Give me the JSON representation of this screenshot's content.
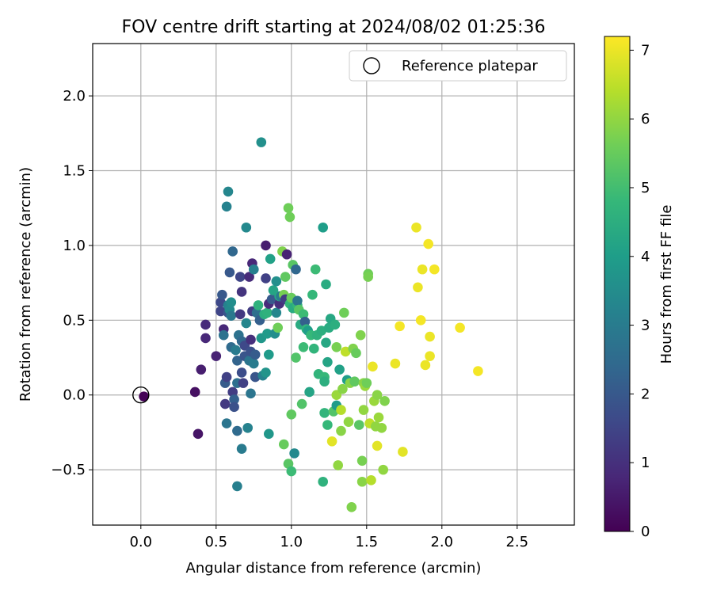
{
  "chart_data": {
    "type": "scatter",
    "title": "FOV centre drift starting at 2024/08/02 01:25:36",
    "xlabel": "Angular distance from reference (arcmin)",
    "ylabel": "Rotation from reference (arcmin)",
    "xlim": [
      -0.32,
      2.88
    ],
    "ylim": [
      -0.87,
      2.35
    ],
    "xticks": [
      0.0,
      0.5,
      1.0,
      1.5,
      2.0,
      2.5
    ],
    "xtick_labels": [
      "0.0",
      "0.5",
      "1.0",
      "1.5",
      "2.0",
      "2.5"
    ],
    "yticks": [
      -0.5,
      0.0,
      0.5,
      1.0,
      1.5,
      2.0
    ],
    "ytick_labels": [
      "−0.5",
      "0.0",
      "0.5",
      "1.0",
      "1.5",
      "2.0"
    ],
    "grid": true,
    "legend": {
      "position": "top-right",
      "label": "Reference platepar",
      "marker": "open-circle"
    },
    "reference_point": {
      "x": 0.0,
      "y": 0.0
    },
    "colorbar": {
      "label": "Hours from first FF file",
      "range": [
        0,
        7.2
      ],
      "ticks": [
        0,
        1,
        2,
        3,
        4,
        5,
        6,
        7
      ],
      "tick_labels": [
        "0",
        "1",
        "2",
        "3",
        "4",
        "5",
        "6",
        "7"
      ],
      "colormap": "viridis",
      "stops": [
        "#440154",
        "#482878",
        "#3e4989",
        "#31688e",
        "#26828e",
        "#1f9e89",
        "#35b779",
        "#6ece58",
        "#b5de2b",
        "#fde725"
      ]
    },
    "points": [
      {
        "x": 0.02,
        "y": -0.01,
        "t": 0.05
      },
      {
        "x": 0.36,
        "y": 0.02,
        "t": 0.3
      },
      {
        "x": 0.38,
        "y": -0.26,
        "t": 0.4
      },
      {
        "x": 0.4,
        "y": 0.17,
        "t": 0.6
      },
      {
        "x": 0.43,
        "y": 0.38,
        "t": 0.8
      },
      {
        "x": 0.43,
        "y": 0.47,
        "t": 0.9
      },
      {
        "x": 0.5,
        "y": 0.26,
        "t": 0.7
      },
      {
        "x": 0.53,
        "y": 0.56,
        "t": 1.5
      },
      {
        "x": 0.53,
        "y": 0.62,
        "t": 1.6
      },
      {
        "x": 0.54,
        "y": 0.67,
        "t": 2.0
      },
      {
        "x": 0.55,
        "y": 0.44,
        "t": 0.8
      },
      {
        "x": 0.55,
        "y": 0.4,
        "t": 2.7
      },
      {
        "x": 0.56,
        "y": -0.06,
        "t": 1.2
      },
      {
        "x": 0.56,
        "y": 0.08,
        "t": 2.1
      },
      {
        "x": 0.57,
        "y": -0.19,
        "t": 2.8
      },
      {
        "x": 0.57,
        "y": 0.12,
        "t": 1.4
      },
      {
        "x": 0.58,
        "y": 0.55,
        "t": 1.9
      },
      {
        "x": 0.58,
        "y": 0.6,
        "t": 3.2
      },
      {
        "x": 0.59,
        "y": 0.57,
        "t": 3.4
      },
      {
        "x": 0.6,
        "y": 0.53,
        "t": 2.9
      },
      {
        "x": 0.6,
        "y": 0.62,
        "t": 3.5
      },
      {
        "x": 0.57,
        "y": 1.26,
        "t": 3.2
      },
      {
        "x": 0.58,
        "y": 1.36,
        "t": 3.3
      },
      {
        "x": 0.59,
        "y": 0.82,
        "t": 2.0
      },
      {
        "x": 0.6,
        "y": 0.32,
        "t": 2.5
      },
      {
        "x": 0.61,
        "y": 0.96,
        "t": 2.4
      },
      {
        "x": 0.61,
        "y": 0.02,
        "t": 1.3
      },
      {
        "x": 0.62,
        "y": -0.03,
        "t": 2.2
      },
      {
        "x": 0.62,
        "y": -0.08,
        "t": 1.8
      },
      {
        "x": 0.63,
        "y": 0.3,
        "t": 3.0
      },
      {
        "x": 0.64,
        "y": 0.08,
        "t": 2.6
      },
      {
        "x": 0.64,
        "y": 0.23,
        "t": 2.3
      },
      {
        "x": 0.64,
        "y": -0.24,
        "t": 2.5
      },
      {
        "x": 0.64,
        "y": -0.61,
        "t": 3.1
      },
      {
        "x": 0.65,
        "y": 0.4,
        "t": 2.7
      },
      {
        "x": 0.66,
        "y": 0.79,
        "t": 1.5
      },
      {
        "x": 0.66,
        "y": 0.54,
        "t": 1.2
      },
      {
        "x": 0.67,
        "y": 0.69,
        "t": 1.1
      },
      {
        "x": 0.67,
        "y": 0.36,
        "t": 2.4
      },
      {
        "x": 0.67,
        "y": 0.15,
        "t": 1.7
      },
      {
        "x": 0.67,
        "y": -0.36,
        "t": 3.0
      },
      {
        "x": 0.68,
        "y": 0.08,
        "t": 1.4
      },
      {
        "x": 0.69,
        "y": 0.26,
        "t": 1.9
      },
      {
        "x": 0.69,
        "y": 0.33,
        "t": 1.6
      },
      {
        "x": 0.7,
        "y": 1.12,
        "t": 3.4
      },
      {
        "x": 0.7,
        "y": 0.48,
        "t": 3.3
      },
      {
        "x": 0.71,
        "y": -0.22,
        "t": 3.2
      },
      {
        "x": 0.72,
        "y": 0.79,
        "t": 0.9
      },
      {
        "x": 0.72,
        "y": 0.23,
        "t": 2.8
      },
      {
        "x": 0.73,
        "y": 0.29,
        "t": 1.8
      },
      {
        "x": 0.73,
        "y": 0.37,
        "t": 1.0
      },
      {
        "x": 0.73,
        "y": 0.01,
        "t": 2.8
      },
      {
        "x": 0.74,
        "y": 0.88,
        "t": 0.8
      },
      {
        "x": 0.74,
        "y": 0.56,
        "t": 1.3
      },
      {
        "x": 0.75,
        "y": 0.84,
        "t": 3.1
      },
      {
        "x": 0.75,
        "y": 0.21,
        "t": 3.0
      },
      {
        "x": 0.76,
        "y": 0.27,
        "t": 2.1
      },
      {
        "x": 0.76,
        "y": 0.12,
        "t": 1.9
      },
      {
        "x": 0.77,
        "y": 0.55,
        "t": 2.6
      },
      {
        "x": 0.78,
        "y": 0.6,
        "t": 4.6
      },
      {
        "x": 0.79,
        "y": 0.5,
        "t": 2.2
      },
      {
        "x": 0.8,
        "y": 1.69,
        "t": 3.6
      },
      {
        "x": 0.8,
        "y": 0.38,
        "t": 3.8
      },
      {
        "x": 0.81,
        "y": 0.13,
        "t": 3.2
      },
      {
        "x": 0.82,
        "y": 0.54,
        "t": 4.5
      },
      {
        "x": 0.83,
        "y": 0.78,
        "t": 1.4
      },
      {
        "x": 0.83,
        "y": 1.0,
        "t": 0.6
      },
      {
        "x": 0.83,
        "y": 0.15,
        "t": 3.7
      },
      {
        "x": 0.84,
        "y": 0.41,
        "t": 3.9
      },
      {
        "x": 0.84,
        "y": 0.55,
        "t": 4.6
      },
      {
        "x": 0.85,
        "y": 0.61,
        "t": 0.9
      },
      {
        "x": 0.85,
        "y": -0.26,
        "t": 3.8
      },
      {
        "x": 0.85,
        "y": 0.27,
        "t": 3.9
      },
      {
        "x": 0.86,
        "y": 0.91,
        "t": 4.1
      },
      {
        "x": 0.87,
        "y": 0.64,
        "t": 2.0
      },
      {
        "x": 0.88,
        "y": 0.7,
        "t": 4.2
      },
      {
        "x": 0.89,
        "y": 0.41,
        "t": 3.5
      },
      {
        "x": 0.9,
        "y": 0.76,
        "t": 3.6
      },
      {
        "x": 0.9,
        "y": 0.55,
        "t": 3.3
      },
      {
        "x": 0.91,
        "y": 0.45,
        "t": 5.6
      },
      {
        "x": 0.92,
        "y": 0.61,
        "t": 1.0
      },
      {
        "x": 0.92,
        "y": 0.66,
        "t": 4.3
      },
      {
        "x": 0.93,
        "y": 0.66,
        "t": 3.0
      },
      {
        "x": 0.94,
        "y": 0.96,
        "t": 5.8
      },
      {
        "x": 0.95,
        "y": 0.67,
        "t": 5.7
      },
      {
        "x": 0.95,
        "y": -0.33,
        "t": 5.5
      },
      {
        "x": 0.96,
        "y": 0.79,
        "t": 5.4
      },
      {
        "x": 0.96,
        "y": 0.64,
        "t": 1.3
      },
      {
        "x": 0.97,
        "y": 0.94,
        "t": 0.7
      },
      {
        "x": 0.98,
        "y": 1.25,
        "t": 5.6
      },
      {
        "x": 0.98,
        "y": -0.46,
        "t": 5.3
      },
      {
        "x": 0.99,
        "y": 1.19,
        "t": 5.6
      },
      {
        "x": 0.99,
        "y": 0.61,
        "t": 4.8
      },
      {
        "x": 1.0,
        "y": 0.65,
        "t": 5.5
      },
      {
        "x": 1.0,
        "y": -0.51,
        "t": 4.9
      },
      {
        "x": 1.0,
        "y": -0.13,
        "t": 5.4
      },
      {
        "x": 1.01,
        "y": 0.87,
        "t": 5.3
      },
      {
        "x": 1.01,
        "y": 0.58,
        "t": 4.4
      },
      {
        "x": 1.02,
        "y": -0.39,
        "t": 3.4
      },
      {
        "x": 1.03,
        "y": 0.84,
        "t": 2.4
      },
      {
        "x": 1.03,
        "y": 0.25,
        "t": 5.2
      },
      {
        "x": 1.04,
        "y": 0.6,
        "t": 4.7
      },
      {
        "x": 1.04,
        "y": 0.63,
        "t": 2.8
      },
      {
        "x": 1.05,
        "y": 0.57,
        "t": 5.3
      },
      {
        "x": 1.06,
        "y": 0.47,
        "t": 4.4
      },
      {
        "x": 1.07,
        "y": -0.06,
        "t": 5.2
      },
      {
        "x": 1.08,
        "y": 0.54,
        "t": 4.9
      },
      {
        "x": 1.08,
        "y": 0.32,
        "t": 4.9
      },
      {
        "x": 1.09,
        "y": 0.49,
        "t": 2.2
      },
      {
        "x": 1.1,
        "y": 0.44,
        "t": 4.7
      },
      {
        "x": 1.11,
        "y": 0.43,
        "t": 4.0
      },
      {
        "x": 1.12,
        "y": 0.02,
        "t": 4.2
      },
      {
        "x": 1.13,
        "y": 0.4,
        "t": 4.8
      },
      {
        "x": 1.14,
        "y": 0.67,
        "t": 4.8
      },
      {
        "x": 1.15,
        "y": 0.31,
        "t": 4.7
      },
      {
        "x": 1.16,
        "y": 0.84,
        "t": 4.9
      },
      {
        "x": 1.17,
        "y": 0.4,
        "t": 4.6
      },
      {
        "x": 1.18,
        "y": 0.14,
        "t": 4.7
      },
      {
        "x": 1.2,
        "y": 0.43,
        "t": 4.5
      },
      {
        "x": 1.21,
        "y": 1.12,
        "t": 4.0
      },
      {
        "x": 1.21,
        "y": -0.58,
        "t": 4.6
      },
      {
        "x": 1.22,
        "y": 0.12,
        "t": 4.8
      },
      {
        "x": 1.22,
        "y": -0.12,
        "t": 4.7
      },
      {
        "x": 1.22,
        "y": 0.09,
        "t": 4.5
      },
      {
        "x": 1.23,
        "y": 0.35,
        "t": 4.3
      },
      {
        "x": 1.23,
        "y": 0.74,
        "t": 4.4
      },
      {
        "x": 1.24,
        "y": 0.22,
        "t": 4.2
      },
      {
        "x": 1.24,
        "y": -0.2,
        "t": 4.8
      },
      {
        "x": 1.25,
        "y": 0.45,
        "t": 4.4
      },
      {
        "x": 1.26,
        "y": 0.51,
        "t": 4.3
      },
      {
        "x": 1.27,
        "y": -0.31,
        "t": 6.9
      },
      {
        "x": 1.28,
        "y": -0.11,
        "t": 5.2
      },
      {
        "x": 1.29,
        "y": 0.47,
        "t": 4.5
      },
      {
        "x": 1.3,
        "y": -0.07,
        "t": 3.9
      },
      {
        "x": 1.3,
        "y": 0.32,
        "t": 5.7
      },
      {
        "x": 1.3,
        "y": 0.0,
        "t": 6.1
      },
      {
        "x": 1.31,
        "y": -0.47,
        "t": 6.0
      },
      {
        "x": 1.32,
        "y": 0.17,
        "t": 4.1
      },
      {
        "x": 1.33,
        "y": -0.24,
        "t": 5.9
      },
      {
        "x": 1.33,
        "y": -0.1,
        "t": 6.4
      },
      {
        "x": 1.34,
        "y": 0.04,
        "t": 5.9
      },
      {
        "x": 1.35,
        "y": 0.55,
        "t": 5.6
      },
      {
        "x": 1.36,
        "y": 0.29,
        "t": 6.5
      },
      {
        "x": 1.37,
        "y": 0.1,
        "t": 4.0
      },
      {
        "x": 1.38,
        "y": -0.18,
        "t": 6.0
      },
      {
        "x": 1.39,
        "y": 0.08,
        "t": 5.9
      },
      {
        "x": 1.4,
        "y": -0.75,
        "t": 5.8
      },
      {
        "x": 1.41,
        "y": 0.31,
        "t": 5.8
      },
      {
        "x": 1.42,
        "y": 0.09,
        "t": 5.4
      },
      {
        "x": 1.43,
        "y": 0.28,
        "t": 5.5
      },
      {
        "x": 1.45,
        "y": -0.2,
        "t": 5.3
      },
      {
        "x": 1.46,
        "y": 0.4,
        "t": 5.8
      },
      {
        "x": 1.47,
        "y": -0.44,
        "t": 5.7
      },
      {
        "x": 1.47,
        "y": -0.58,
        "t": 5.9
      },
      {
        "x": 1.48,
        "y": 0.08,
        "t": 5.9
      },
      {
        "x": 1.48,
        "y": -0.1,
        "t": 6.0
      },
      {
        "x": 1.49,
        "y": 0.06,
        "t": 6.1
      },
      {
        "x": 1.5,
        "y": 0.08,
        "t": 5.6
      },
      {
        "x": 1.51,
        "y": 0.81,
        "t": 5.6
      },
      {
        "x": 1.51,
        "y": 0.79,
        "t": 5.7
      },
      {
        "x": 1.52,
        "y": -0.19,
        "t": 6.5
      },
      {
        "x": 1.53,
        "y": -0.57,
        "t": 6.4
      },
      {
        "x": 1.54,
        "y": 0.19,
        "t": 7.0
      },
      {
        "x": 1.55,
        "y": -0.04,
        "t": 6.1
      },
      {
        "x": 1.56,
        "y": -0.21,
        "t": 6.0
      },
      {
        "x": 1.57,
        "y": -0.34,
        "t": 6.9
      },
      {
        "x": 1.57,
        "y": 0.0,
        "t": 5.9
      },
      {
        "x": 1.58,
        "y": -0.15,
        "t": 6.1
      },
      {
        "x": 1.6,
        "y": -0.22,
        "t": 6.0
      },
      {
        "x": 1.61,
        "y": -0.5,
        "t": 6.0
      },
      {
        "x": 1.62,
        "y": -0.04,
        "t": 5.8
      },
      {
        "x": 1.69,
        "y": 0.21,
        "t": 7.0
      },
      {
        "x": 1.72,
        "y": 0.46,
        "t": 7.1
      },
      {
        "x": 1.74,
        "y": -0.38,
        "t": 6.9
      },
      {
        "x": 1.83,
        "y": 1.12,
        "t": 7.0
      },
      {
        "x": 1.84,
        "y": 0.72,
        "t": 7.0
      },
      {
        "x": 1.86,
        "y": 0.5,
        "t": 7.1
      },
      {
        "x": 1.87,
        "y": 0.84,
        "t": 7.0
      },
      {
        "x": 1.89,
        "y": 0.2,
        "t": 7.0
      },
      {
        "x": 1.91,
        "y": 1.01,
        "t": 7.1
      },
      {
        "x": 1.92,
        "y": 0.26,
        "t": 7.0
      },
      {
        "x": 1.92,
        "y": 0.39,
        "t": 7.0
      },
      {
        "x": 1.95,
        "y": 0.84,
        "t": 7.1
      },
      {
        "x": 2.12,
        "y": 0.45,
        "t": 7.1
      },
      {
        "x": 2.24,
        "y": 0.16,
        "t": 7.1
      }
    ]
  }
}
